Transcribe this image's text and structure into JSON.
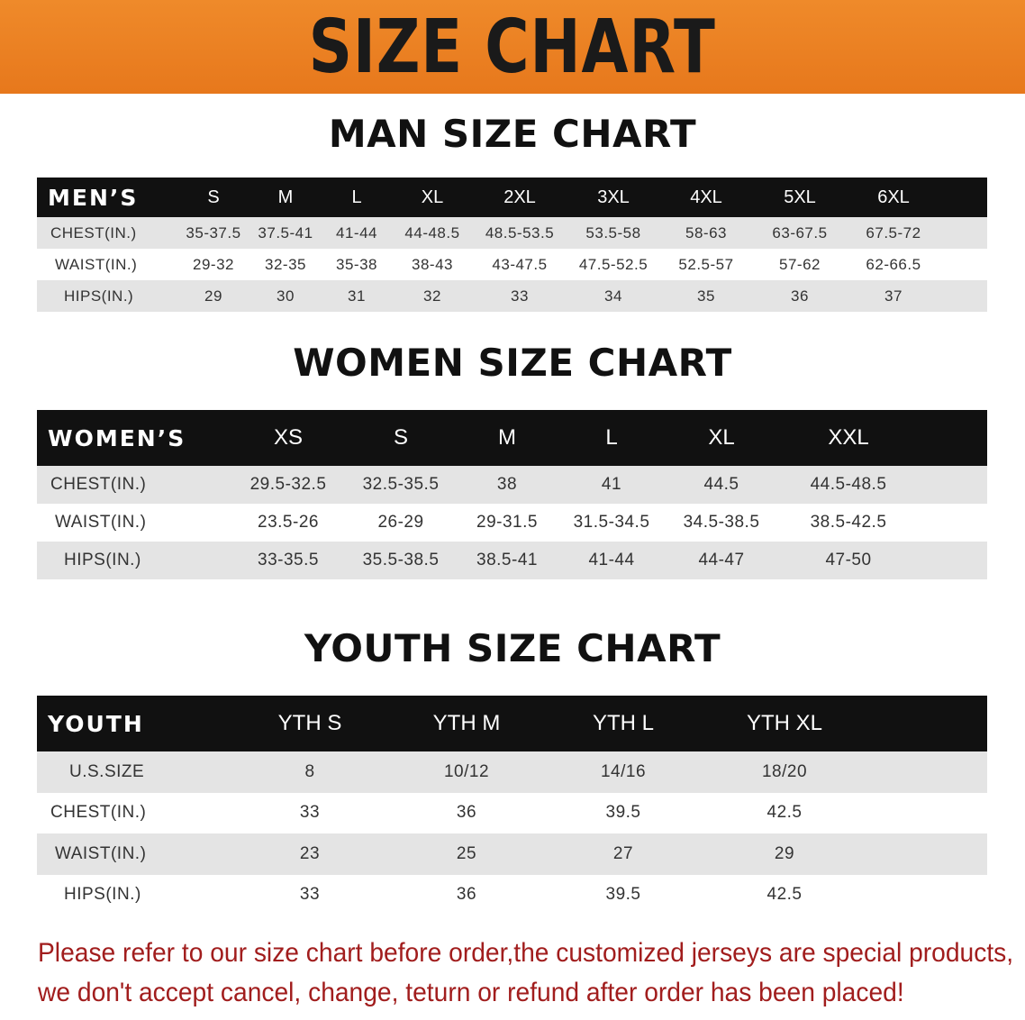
{
  "banner": {
    "title": "SIZE CHART"
  },
  "men": {
    "title": "MAN SIZE CHART",
    "header_label": "MEN’S",
    "sizes": [
      "S",
      "M",
      "L",
      "XL",
      "2XL",
      "3XL",
      "4XL",
      "5XL",
      "6XL"
    ],
    "rows": [
      {
        "label": "CHEST(IN.)",
        "values": [
          "35-37.5",
          "37.5-41",
          "41-44",
          "44-48.5",
          "48.5-53.5",
          "53.5-58",
          "58-63",
          "63-67.5",
          "67.5-72"
        ]
      },
      {
        "label": "WAIST(IN.)",
        "values": [
          "29-32",
          "32-35",
          "35-38",
          "38-43",
          "43-47.5",
          "47.5-52.5",
          "52.5-57",
          "57-62",
          "62-66.5"
        ]
      },
      {
        "label": "HIPS(IN.)",
        "values": [
          "29",
          "30",
          "31",
          "32",
          "33",
          "34",
          "35",
          "36",
          "37"
        ]
      }
    ]
  },
  "women": {
    "title": "WOMEN SIZE CHART",
    "header_label": "WOMEN’S",
    "sizes": [
      "XS",
      "S",
      "M",
      "L",
      "XL",
      "XXL"
    ],
    "rows": [
      {
        "label": "CHEST(IN.)",
        "values": [
          "29.5-32.5",
          "32.5-35.5",
          "38",
          "41",
          "44.5",
          "44.5-48.5"
        ]
      },
      {
        "label": "WAIST(IN.)",
        "values": [
          "23.5-26",
          "26-29",
          "29-31.5",
          "31.5-34.5",
          "34.5-38.5",
          "38.5-42.5"
        ]
      },
      {
        "label": "HIPS(IN.)",
        "values": [
          "33-35.5",
          "35.5-38.5",
          "38.5-41",
          "41-44",
          "44-47",
          "47-50"
        ]
      }
    ]
  },
  "youth": {
    "title": "YOUTH SIZE CHART",
    "header_label": "YOUTH",
    "sizes": [
      "YTH S",
      "YTH M",
      "YTH L",
      "YTH XL"
    ],
    "rows": [
      {
        "label": "U.S.SIZE",
        "values": [
          "8",
          "10/12",
          "14/16",
          "18/20"
        ]
      },
      {
        "label": "CHEST(IN.)",
        "values": [
          "33",
          "36",
          "39.5",
          "42.5"
        ]
      },
      {
        "label": "WAIST(IN.)",
        "values": [
          "23",
          "25",
          "27",
          "29"
        ]
      },
      {
        "label": "HIPS(IN.)",
        "values": [
          "33",
          "36",
          "39.5",
          "42.5"
        ]
      }
    ]
  },
  "notice": {
    "line1": "Please refer to our size chart before order,the customized jerseys are special products,",
    "line2": "we don't accept cancel, change, teturn or refund after order has been placed!"
  }
}
